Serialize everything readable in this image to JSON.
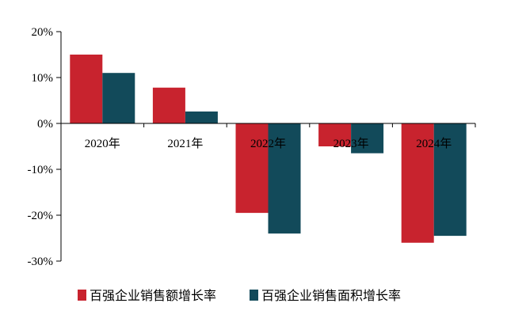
{
  "chart_data": {
    "type": "bar",
    "categories": [
      "2020年",
      "2021年",
      "2022年",
      "2023年",
      "2024年"
    ],
    "series": [
      {
        "name": "百强企业销售额增长率",
        "values": [
          15.0,
          7.8,
          -19.5,
          -5.0,
          -26.0
        ],
        "color": "#c8232e"
      },
      {
        "name": "百强企业销售面积增长率",
        "values": [
          11.0,
          2.6,
          -24.0,
          -6.5,
          -24.5
        ],
        "color": "#124a5a"
      }
    ],
    "ylim": [
      -30,
      20
    ],
    "yticks": [
      -30,
      -20,
      -10,
      0,
      10,
      20
    ],
    "ytick_labels": [
      "-30%",
      "-20%",
      "-10%",
      "0%",
      "10%",
      "20%"
    ],
    "grid": false,
    "legend_position": "bottom"
  }
}
